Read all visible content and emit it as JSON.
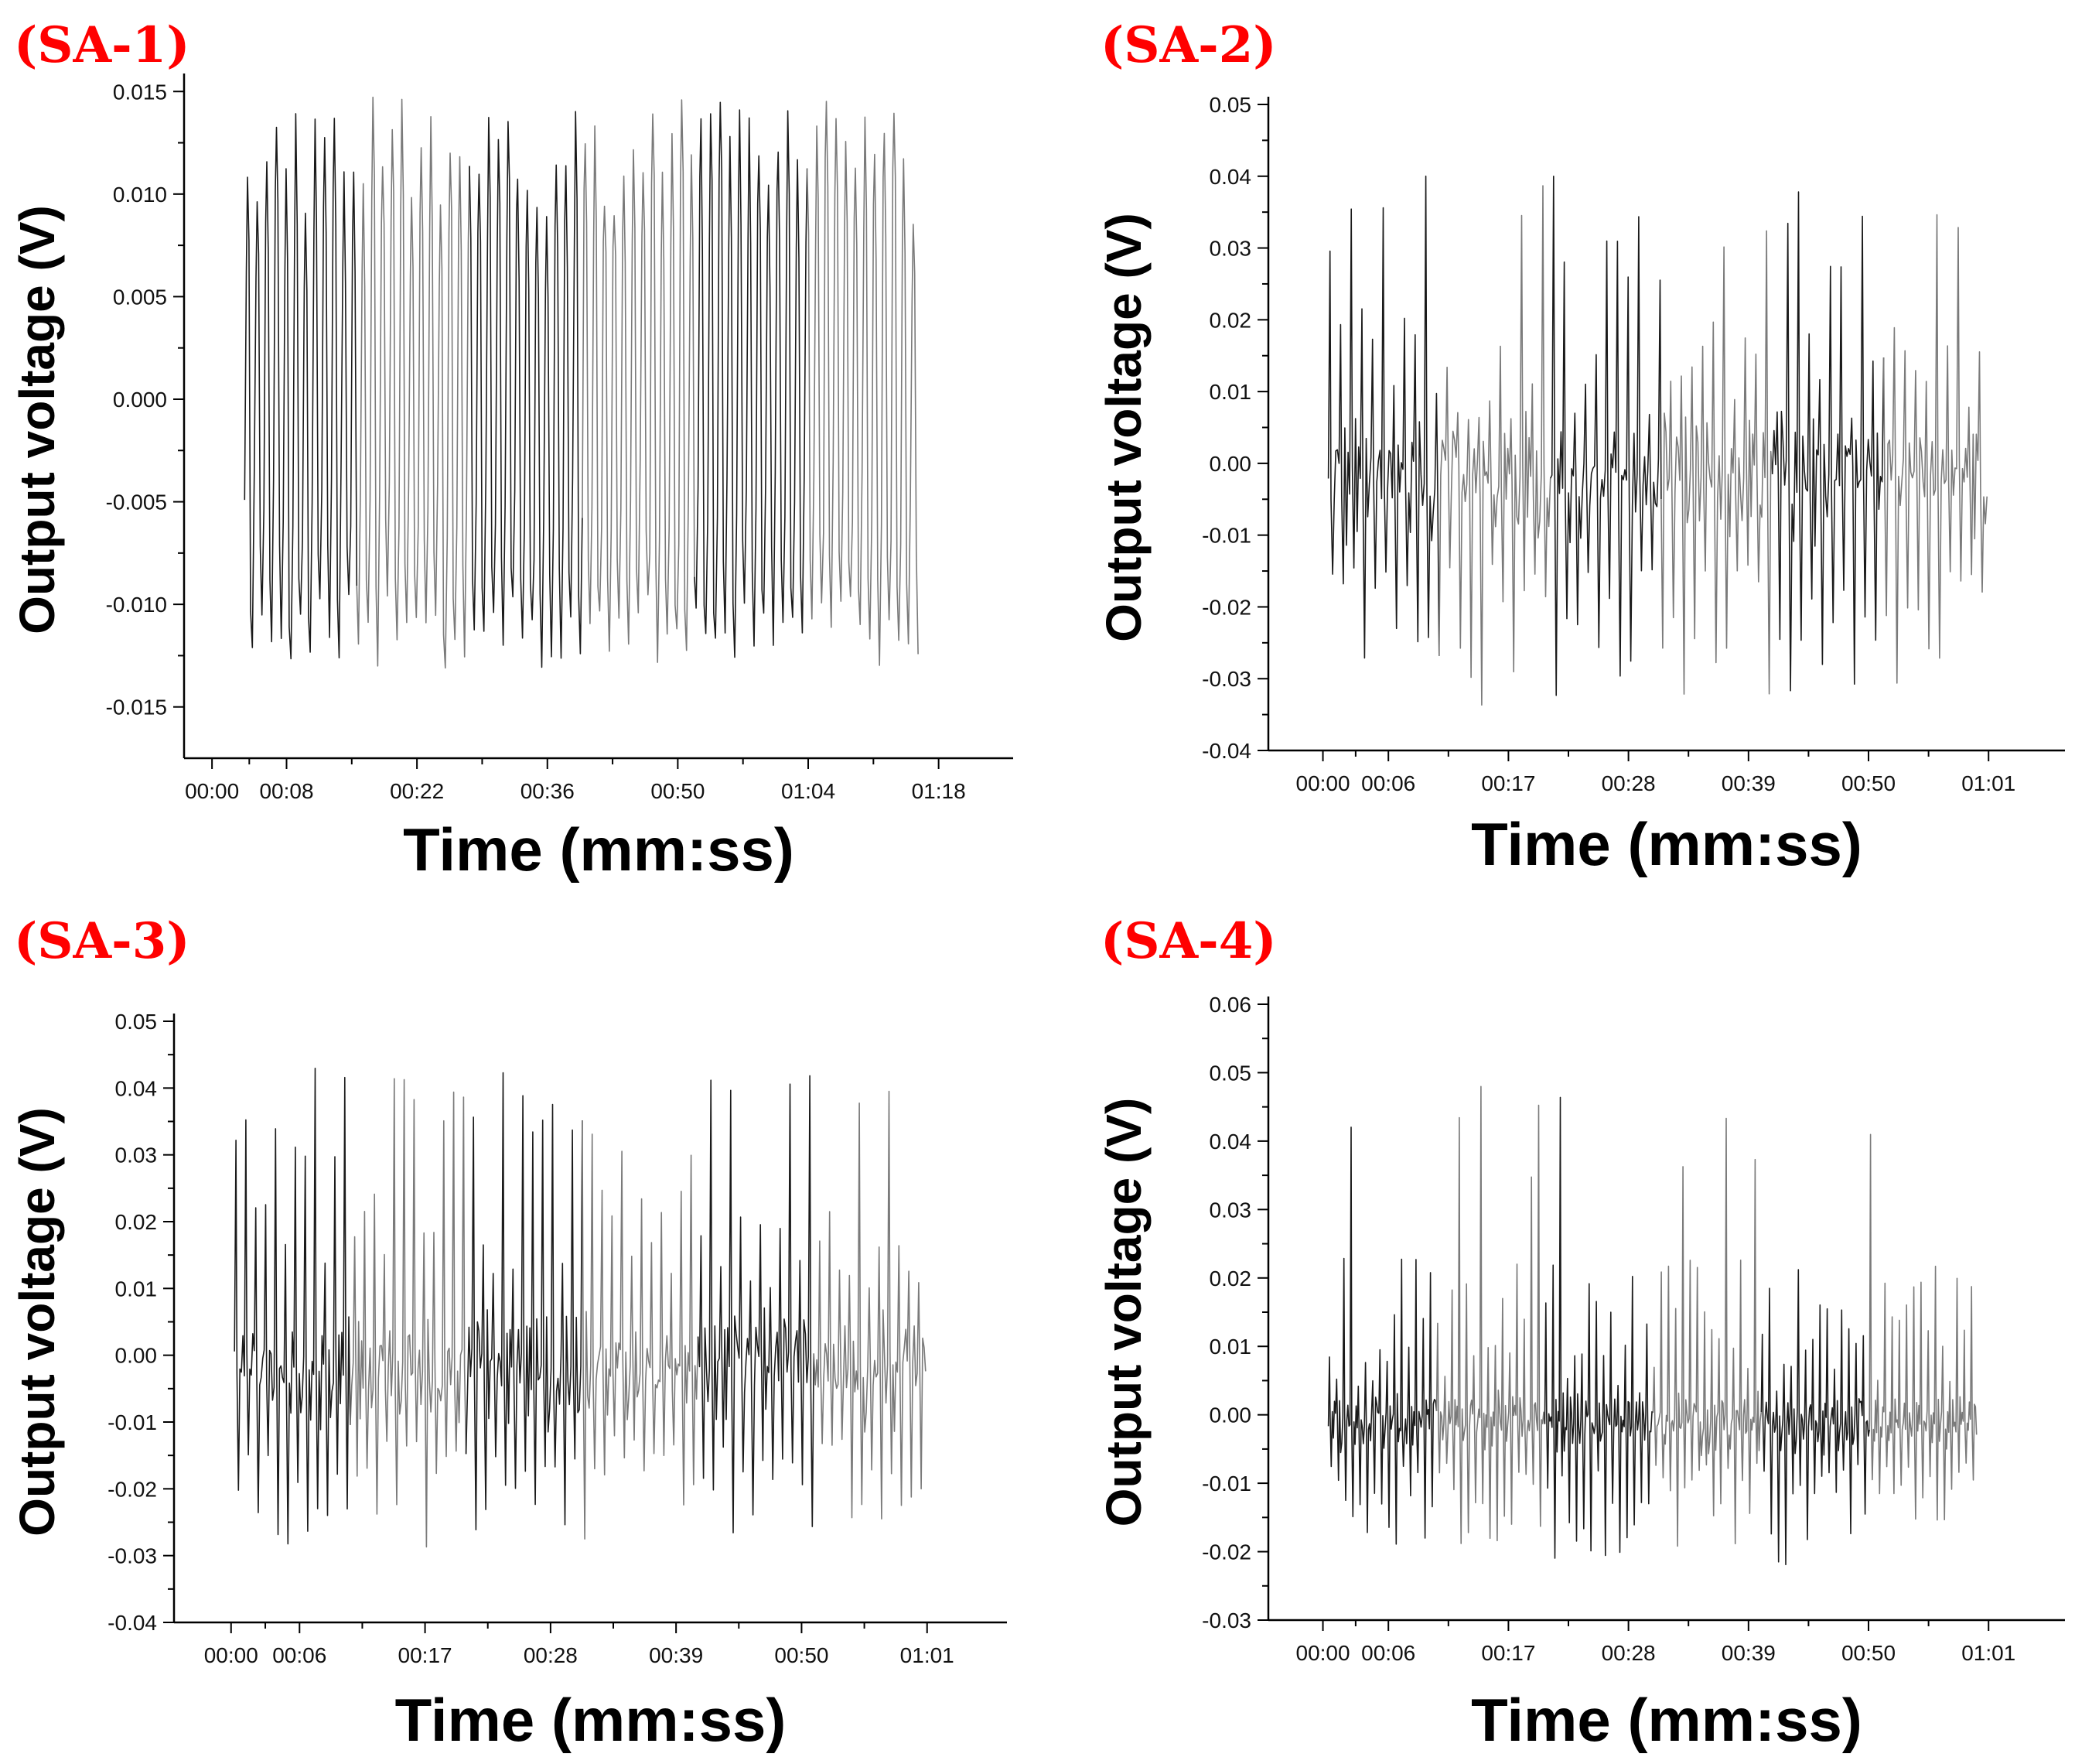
{
  "figure": {
    "description_panels": 4
  },
  "colors": {
    "panel_tag": "#ff0000",
    "axes": "#000000",
    "signal_dark": "#1a1a1a",
    "signal_light": "#7a7a7a"
  },
  "chart_data": [
    {
      "type": "line",
      "panel_label": "(SA-1)",
      "title": "",
      "xlabel": "Time (mm:ss)",
      "ylabel": "Output voltage (V)",
      "xticks": [
        "00:00",
        "00:08",
        "00:22",
        "00:36",
        "00:50",
        "01:04",
        "01:18"
      ],
      "xlim_s": [
        -3,
        86
      ],
      "yticks": [
        "0.015",
        "0.010",
        "0.005",
        "0.000",
        "-0.005",
        "-0.010",
        "-0.015"
      ],
      "ylim": [
        -0.0175,
        0.0155
      ],
      "signal": {
        "t_start_s": 3.5,
        "t_end_s": 76,
        "baseline": 0.0,
        "mode": "oscillation",
        "cycles": 70,
        "pos_peak_range": [
          0.0085,
          0.0148
        ],
        "neg_peak_range": [
          -0.0131,
          -0.0095
        ],
        "seed": 11
      }
    },
    {
      "type": "line",
      "panel_label": "(SA-2)",
      "title": "",
      "xlabel": "Time (mm:ss)",
      "ylabel": "Output voltage (V)",
      "xticks": [
        "00:00",
        "00:06",
        "00:17",
        "00:28",
        "00:39",
        "00:50",
        "01:01"
      ],
      "xlim_s": [
        -5,
        68
      ],
      "yticks": [
        "0.05",
        "0.04",
        "0.03",
        "0.02",
        "0.01",
        "0.00",
        "-0.01",
        "-0.02",
        "-0.03",
        "-0.04"
      ],
      "ylim": [
        -0.04,
        0.05
      ],
      "signal": {
        "t_start_s": 0.5,
        "t_end_s": 61,
        "baseline": -0.002,
        "mode": "spikes",
        "cycles": 62,
        "pos_peak_range": [
          0.008,
          0.043
        ],
        "neg_peak_range": [
          -0.032,
          -0.012
        ],
        "seed": 22
      }
    },
    {
      "type": "line",
      "panel_label": "(SA-3)",
      "title": "",
      "xlabel": "Time (mm:ss)",
      "ylabel": "Output voltage (V)",
      "xticks": [
        "00:00",
        "00:06",
        "00:17",
        "00:28",
        "00:39",
        "00:50",
        "01:01"
      ],
      "xlim_s": [
        -5,
        68
      ],
      "yticks": [
        "0.05",
        "0.04",
        "0.03",
        "0.02",
        "0.01",
        "0.00",
        "-0.01",
        "-0.02",
        "-0.03",
        "-0.04"
      ],
      "ylim": [
        -0.04,
        0.05
      ],
      "signal": {
        "t_start_s": 0.3,
        "t_end_s": 61,
        "baseline": -0.002,
        "mode": "spikes",
        "cycles": 70,
        "pos_peak_range": [
          0.012,
          0.045
        ],
        "neg_peak_range": [
          -0.03,
          -0.01
        ],
        "seed": 33
      }
    },
    {
      "type": "line",
      "panel_label": "(SA-4)",
      "title": "",
      "xlabel": "Time (mm:ss)",
      "ylabel": "Output voltage (V)",
      "xticks": [
        "00:00",
        "00:06",
        "00:17",
        "00:28",
        "00:39",
        "00:50",
        "01:01"
      ],
      "xlim_s": [
        -5,
        68
      ],
      "yticks": [
        "0.06",
        "0.05",
        "0.04",
        "0.03",
        "0.02",
        "0.01",
        "0.00",
        "-0.01",
        "-0.02",
        "-0.03"
      ],
      "ylim": [
        -0.03,
        0.06
      ],
      "signal": {
        "t_start_s": 0.5,
        "t_end_s": 60,
        "baseline": -0.001,
        "mode": "sparse-spikes",
        "cycles": 90,
        "pos_peak_range": [
          0.004,
          0.049
        ],
        "neg_peak_range": [
          -0.023,
          -0.006
        ],
        "seed": 44
      }
    }
  ]
}
